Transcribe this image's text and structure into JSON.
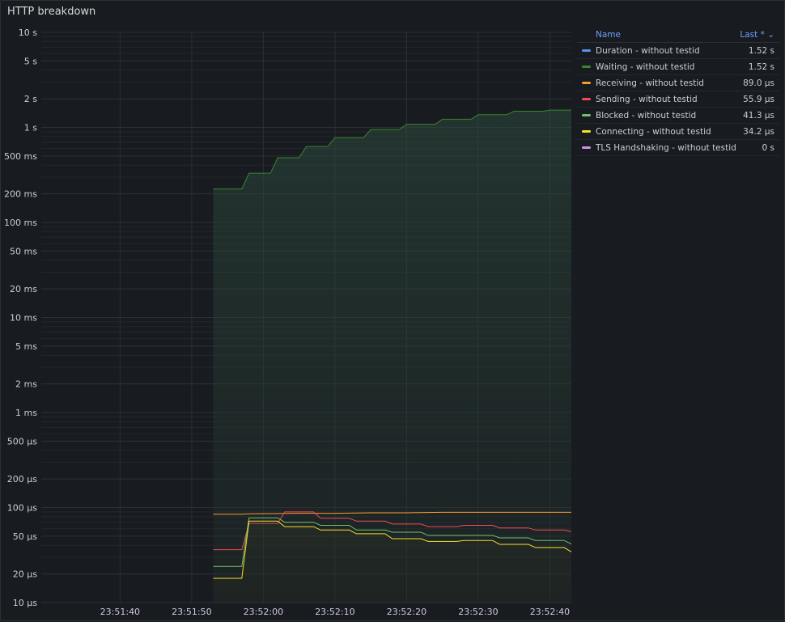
{
  "panel": {
    "title": "HTTP breakdown"
  },
  "legend": {
    "header_name": "Name",
    "header_last": "Last * ⌄",
    "items": [
      {
        "name": "Duration - without testid",
        "value": "1.52 s",
        "color": "#5794f2"
      },
      {
        "name": "Waiting - without testid",
        "value": "1.52 s",
        "color": "#37872d"
      },
      {
        "name": "Receiving - without testid",
        "value": "89.0 µs",
        "color": "#ff9830"
      },
      {
        "name": "Sending - without testid",
        "value": "55.9 µs",
        "color": "#f2495c"
      },
      {
        "name": "Blocked - without testid",
        "value": "41.3 µs",
        "color": "#73bf69"
      },
      {
        "name": "Connecting - without testid",
        "value": "34.2 µs",
        "color": "#fade2a"
      },
      {
        "name": "TLS Handshaking - without testid",
        "value": "0 s",
        "color": "#ca95e5"
      }
    ]
  },
  "chart_data": {
    "type": "line",
    "y_scale": "log",
    "ylim_seconds": [
      1e-05,
      10
    ],
    "yticks": [
      {
        "v": 10,
        "label": "10 s"
      },
      {
        "v": 5,
        "label": "5 s"
      },
      {
        "v": 2,
        "label": "2 s"
      },
      {
        "v": 1,
        "label": "1 s"
      },
      {
        "v": 0.5,
        "label": "500 ms"
      },
      {
        "v": 0.2,
        "label": "200 ms"
      },
      {
        "v": 0.1,
        "label": "100 ms"
      },
      {
        "v": 0.05,
        "label": "50 ms"
      },
      {
        "v": 0.02,
        "label": "20 ms"
      },
      {
        "v": 0.01,
        "label": "10 ms"
      },
      {
        "v": 0.005,
        "label": "5 ms"
      },
      {
        "v": 0.002,
        "label": "2 ms"
      },
      {
        "v": 0.001,
        "label": "1 ms"
      },
      {
        "v": 0.0005,
        "label": "500 µs"
      },
      {
        "v": 0.0002,
        "label": "200 µs"
      },
      {
        "v": 0.0001,
        "label": "100 µs"
      },
      {
        "v": 5e-05,
        "label": "50 µs"
      },
      {
        "v": 2e-05,
        "label": "20 µs"
      },
      {
        "v": 1e-05,
        "label": "10 µs"
      }
    ],
    "xlim": [
      "23:51:29",
      "23:52:43"
    ],
    "xticks": [
      "23:51:40",
      "23:51:50",
      "23:52:00",
      "23:52:10",
      "23:52:20",
      "23:52:30",
      "23:52:40"
    ],
    "grid": true,
    "legend_position": "right",
    "series": [
      {
        "name": "Waiting - without testid",
        "color": "#37872d",
        "fill": true,
        "points": [
          [
            "23:51:53",
            0.225
          ],
          [
            "23:51:57",
            0.225
          ],
          [
            "23:51:58",
            0.33
          ],
          [
            "23:52:01",
            0.33
          ],
          [
            "23:52:02",
            0.48
          ],
          [
            "23:52:05",
            0.48
          ],
          [
            "23:52:06",
            0.63
          ],
          [
            "23:52:09",
            0.63
          ],
          [
            "23:52:10",
            0.78
          ],
          [
            "23:52:14",
            0.78
          ],
          [
            "23:52:15",
            0.95
          ],
          [
            "23:52:19",
            0.95
          ],
          [
            "23:52:20",
            1.08
          ],
          [
            "23:52:24",
            1.08
          ],
          [
            "23:52:25",
            1.22
          ],
          [
            "23:52:29",
            1.22
          ],
          [
            "23:52:30",
            1.36
          ],
          [
            "23:52:34",
            1.36
          ],
          [
            "23:52:35",
            1.48
          ],
          [
            "23:52:39",
            1.48
          ],
          [
            "23:52:40",
            1.52
          ],
          [
            "23:52:43",
            1.52
          ]
        ]
      },
      {
        "name": "Receiving - without testid",
        "color": "#ff9830",
        "fill": false,
        "points": [
          [
            "23:51:53",
            8.5e-05
          ],
          [
            "23:51:57",
            8.5e-05
          ],
          [
            "23:51:58",
            8.6e-05
          ],
          [
            "23:52:05",
            8.7e-05
          ],
          [
            "23:52:10",
            8.7e-05
          ],
          [
            "23:52:15",
            8.8e-05
          ],
          [
            "23:52:20",
            8.8e-05
          ],
          [
            "23:52:25",
            8.9e-05
          ],
          [
            "23:52:43",
            8.9e-05
          ]
        ]
      },
      {
        "name": "Sending - without testid",
        "color": "#f2495c",
        "fill": false,
        "points": [
          [
            "23:51:53",
            3.6e-05
          ],
          [
            "23:51:57",
            3.6e-05
          ],
          [
            "23:51:58",
            6.8e-05
          ],
          [
            "23:52:02",
            6.8e-05
          ],
          [
            "23:52:03",
            9e-05
          ],
          [
            "23:52:07",
            9e-05
          ],
          [
            "23:52:08",
            7.7e-05
          ],
          [
            "23:52:12",
            7.7e-05
          ],
          [
            "23:52:13",
            7.2e-05
          ],
          [
            "23:52:17",
            7.2e-05
          ],
          [
            "23:52:18",
            6.7e-05
          ],
          [
            "23:52:22",
            6.7e-05
          ],
          [
            "23:52:23",
            6.3e-05
          ],
          [
            "23:52:27",
            6.3e-05
          ],
          [
            "23:52:28",
            6.5e-05
          ],
          [
            "23:52:32",
            6.5e-05
          ],
          [
            "23:52:33",
            6.1e-05
          ],
          [
            "23:52:37",
            6.1e-05
          ],
          [
            "23:52:38",
            5.8e-05
          ],
          [
            "23:52:42",
            5.8e-05
          ],
          [
            "23:52:43",
            5.59e-05
          ]
        ]
      },
      {
        "name": "Blocked - without testid",
        "color": "#73bf69",
        "fill": false,
        "points": [
          [
            "23:51:53",
            2.4e-05
          ],
          [
            "23:51:57",
            2.4e-05
          ],
          [
            "23:51:58",
            7.8e-05
          ],
          [
            "23:52:02",
            7.8e-05
          ],
          [
            "23:52:03",
            7e-05
          ],
          [
            "23:52:07",
            7e-05
          ],
          [
            "23:52:08",
            6.5e-05
          ],
          [
            "23:52:12",
            6.5e-05
          ],
          [
            "23:52:13",
            5.8e-05
          ],
          [
            "23:52:17",
            5.8e-05
          ],
          [
            "23:52:18",
            5.5e-05
          ],
          [
            "23:52:22",
            5.5e-05
          ],
          [
            "23:52:23",
            5.1e-05
          ],
          [
            "23:52:32",
            5.1e-05
          ],
          [
            "23:52:33",
            4.8e-05
          ],
          [
            "23:52:37",
            4.8e-05
          ],
          [
            "23:52:38",
            4.5e-05
          ],
          [
            "23:52:42",
            4.5e-05
          ],
          [
            "23:52:43",
            4.13e-05
          ]
        ]
      },
      {
        "name": "Connecting - without testid",
        "color": "#fade2a",
        "fill": false,
        "points": [
          [
            "23:51:53",
            1.8e-05
          ],
          [
            "23:51:57",
            1.8e-05
          ],
          [
            "23:51:58",
            7.2e-05
          ],
          [
            "23:52:02",
            7.2e-05
          ],
          [
            "23:52:03",
            6.3e-05
          ],
          [
            "23:52:07",
            6.3e-05
          ],
          [
            "23:52:08",
            5.8e-05
          ],
          [
            "23:52:12",
            5.8e-05
          ],
          [
            "23:52:13",
            5.3e-05
          ],
          [
            "23:52:17",
            5.3e-05
          ],
          [
            "23:52:18",
            4.7e-05
          ],
          [
            "23:52:22",
            4.7e-05
          ],
          [
            "23:52:23",
            4.4e-05
          ],
          [
            "23:52:27",
            4.4e-05
          ],
          [
            "23:52:28",
            4.5e-05
          ],
          [
            "23:52:32",
            4.5e-05
          ],
          [
            "23:52:33",
            4.1e-05
          ],
          [
            "23:52:37",
            4.1e-05
          ],
          [
            "23:52:38",
            3.8e-05
          ],
          [
            "23:52:42",
            3.8e-05
          ],
          [
            "23:52:43",
            3.42e-05
          ]
        ]
      }
    ]
  }
}
